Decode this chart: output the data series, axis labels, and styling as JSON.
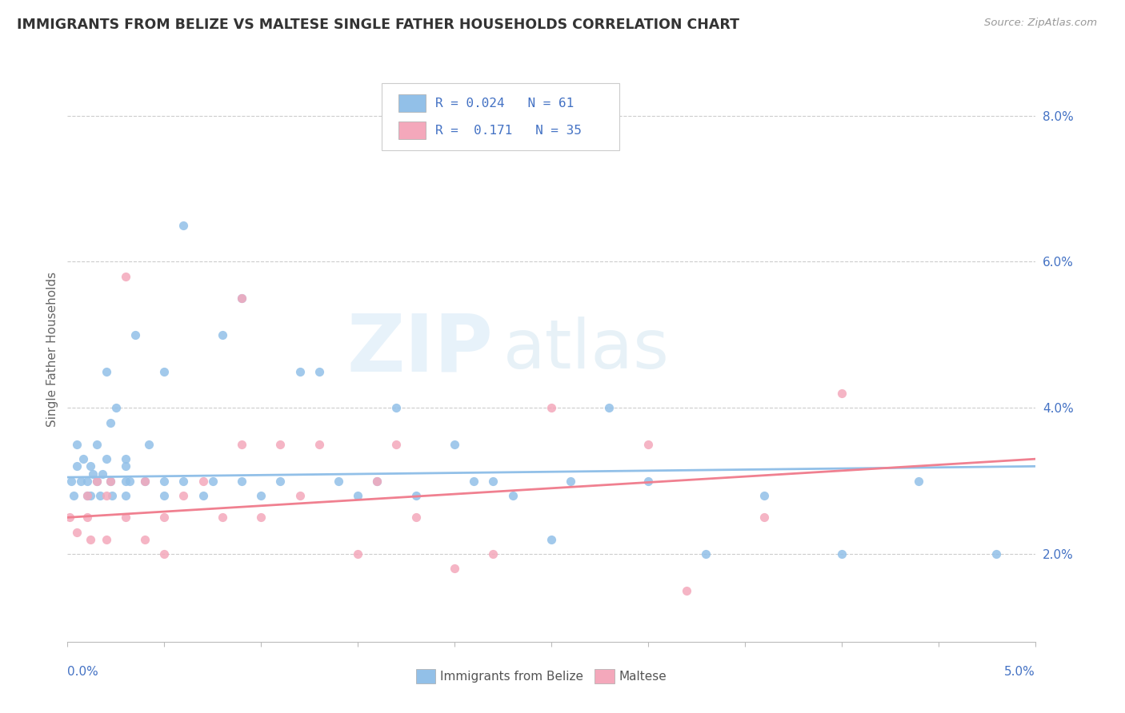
{
  "title": "IMMIGRANTS FROM BELIZE VS MALTESE SINGLE FATHER HOUSEHOLDS CORRELATION CHART",
  "source": "Source: ZipAtlas.com",
  "ylabel": "Single Father Households",
  "x_min": 0.0,
  "x_max": 0.05,
  "y_min": 0.008,
  "y_max": 0.088,
  "color_belize": "#92c0e8",
  "color_maltese": "#f4a8bb",
  "color_line_belize": "#92c0e8",
  "color_line_maltese": "#f08090",
  "color_text": "#4472c4",
  "watermark_color": "#ddeef8",
  "belize_x": [
    0.0002,
    0.0003,
    0.0005,
    0.0005,
    0.0007,
    0.0008,
    0.001,
    0.001,
    0.0012,
    0.0012,
    0.0013,
    0.0015,
    0.0015,
    0.0017,
    0.0018,
    0.002,
    0.002,
    0.0022,
    0.0022,
    0.0023,
    0.0025,
    0.003,
    0.003,
    0.003,
    0.003,
    0.0032,
    0.0035,
    0.004,
    0.0042,
    0.005,
    0.005,
    0.005,
    0.006,
    0.006,
    0.007,
    0.0075,
    0.008,
    0.009,
    0.009,
    0.01,
    0.011,
    0.012,
    0.013,
    0.014,
    0.015,
    0.016,
    0.017,
    0.018,
    0.02,
    0.021,
    0.022,
    0.023,
    0.025,
    0.026,
    0.028,
    0.03,
    0.033,
    0.036,
    0.04,
    0.044,
    0.048
  ],
  "belize_y": [
    0.03,
    0.028,
    0.032,
    0.035,
    0.03,
    0.033,
    0.028,
    0.03,
    0.028,
    0.032,
    0.031,
    0.03,
    0.035,
    0.028,
    0.031,
    0.033,
    0.045,
    0.03,
    0.038,
    0.028,
    0.04,
    0.03,
    0.032,
    0.028,
    0.033,
    0.03,
    0.05,
    0.03,
    0.035,
    0.028,
    0.03,
    0.045,
    0.065,
    0.03,
    0.028,
    0.03,
    0.05,
    0.03,
    0.055,
    0.028,
    0.03,
    0.045,
    0.045,
    0.03,
    0.028,
    0.03,
    0.04,
    0.028,
    0.035,
    0.03,
    0.03,
    0.028,
    0.022,
    0.03,
    0.04,
    0.03,
    0.02,
    0.028,
    0.02,
    0.03,
    0.02
  ],
  "maltese_x": [
    0.0001,
    0.0005,
    0.001,
    0.001,
    0.0012,
    0.0015,
    0.002,
    0.002,
    0.0022,
    0.003,
    0.003,
    0.004,
    0.004,
    0.005,
    0.005,
    0.006,
    0.007,
    0.008,
    0.009,
    0.009,
    0.01,
    0.011,
    0.012,
    0.013,
    0.015,
    0.016,
    0.017,
    0.018,
    0.02,
    0.022,
    0.025,
    0.03,
    0.032,
    0.036,
    0.04
  ],
  "maltese_y": [
    0.025,
    0.023,
    0.025,
    0.028,
    0.022,
    0.03,
    0.022,
    0.028,
    0.03,
    0.025,
    0.058,
    0.022,
    0.03,
    0.02,
    0.025,
    0.028,
    0.03,
    0.025,
    0.035,
    0.055,
    0.025,
    0.035,
    0.028,
    0.035,
    0.02,
    0.03,
    0.035,
    0.025,
    0.018,
    0.02,
    0.04,
    0.035,
    0.015,
    0.025,
    0.042
  ],
  "belize_line_y0": 0.0305,
  "belize_line_y1": 0.032,
  "maltese_line_y0": 0.025,
  "maltese_line_y1": 0.033
}
